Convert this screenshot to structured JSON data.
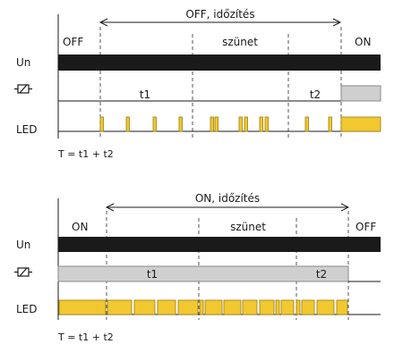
{
  "diagram1": {
    "span_label": "OFF, időzítés",
    "state_left": "OFF",
    "state_mid": "szünet",
    "state_right": "ON",
    "row_un": "Un",
    "row_led": "LED",
    "t1_label": "t1",
    "t2_label": "t2",
    "formula": "T = t1 + t2"
  },
  "diagram2": {
    "span_label": "ON, időzítés",
    "state_left": "ON",
    "state_mid": "szünet",
    "state_right": "OFF",
    "row_un": "Un",
    "row_led": "LED",
    "t1_label": "t1",
    "t2_label": "t2",
    "formula": "T = t1 + t2"
  },
  "icons": {
    "relay": "relay-coil-icon"
  },
  "colors": {
    "supply_bar": "#1a1a1a",
    "relay_on": "#cfcfcf",
    "led": "#f2c830"
  }
}
